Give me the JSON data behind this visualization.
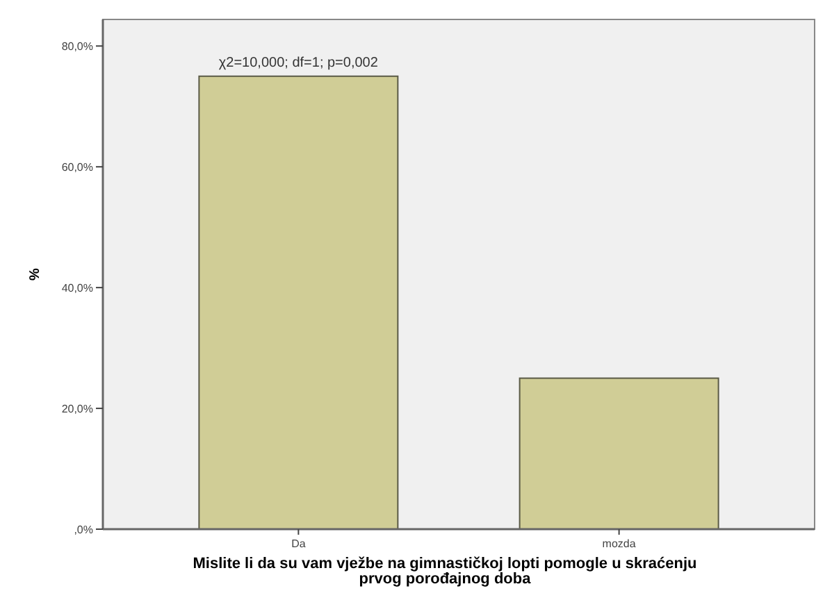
{
  "chart_data": {
    "type": "bar",
    "xlabel": "Mislite li da su vam vježbe na gimnastičkoj lopti pomogle u skraćenju prvog porođajnog doba",
    "ylabel": "%",
    "categories": [
      "Da",
      "mozda"
    ],
    "values": [
      75,
      25
    ],
    "color": "#d0cd96",
    "ylim": [
      0,
      84.4
    ],
    "yticks": [
      {
        "value": 0,
        "label": ",0%"
      },
      {
        "value": 20,
        "label": "20,0%"
      },
      {
        "value": 40,
        "label": "40,0%"
      },
      {
        "value": 60,
        "label": "60,0%"
      },
      {
        "value": 80,
        "label": "80,0%"
      }
    ],
    "annotations": [
      "χ2=10,000; df=1; p=0,002"
    ]
  }
}
